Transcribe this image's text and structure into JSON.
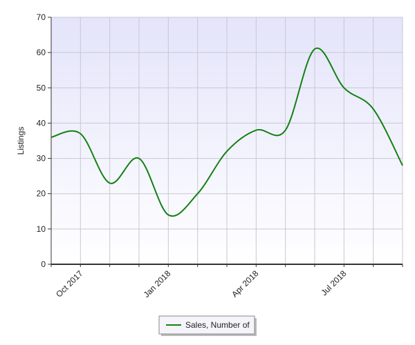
{
  "chart_data": {
    "type": "line",
    "y_label": "Listings",
    "categories": [
      null,
      "Oct 2017",
      null,
      null,
      "Jan 2018",
      null,
      null,
      "Apr 2018",
      null,
      null,
      "Jul 2018",
      null,
      null
    ],
    "series": [
      {
        "name": "Sales, Number of",
        "color": "#118011",
        "values": [
          36,
          37,
          23,
          30,
          14,
          20,
          32,
          38,
          38,
          61,
          50,
          44,
          28
        ]
      }
    ],
    "ylim": [
      0,
      70
    ],
    "yticks": [
      0,
      10,
      20,
      30,
      40,
      50,
      60,
      70
    ],
    "grid": true,
    "legend": "bottom"
  }
}
